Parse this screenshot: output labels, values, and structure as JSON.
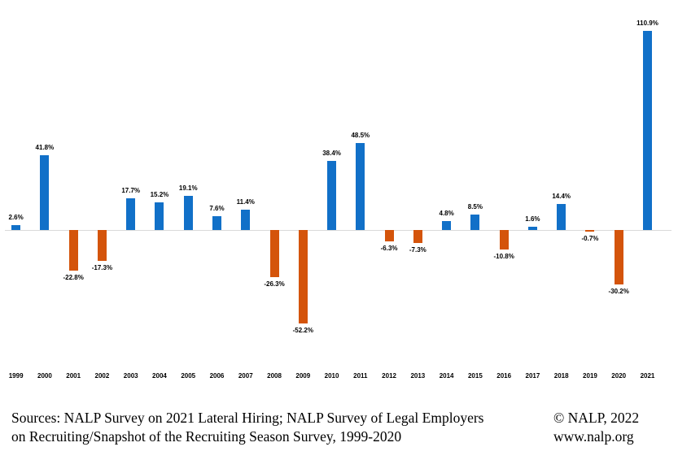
{
  "chart_data": {
    "type": "bar",
    "title": "",
    "xlabel": "",
    "ylabel": "",
    "categories": [
      "1999",
      "2000",
      "2001",
      "2002",
      "2003",
      "2004",
      "2005",
      "2006",
      "2007",
      "2008",
      "2009",
      "2010",
      "2011",
      "2012",
      "2013",
      "2014",
      "2015",
      "2016",
      "2017",
      "2018",
      "2019",
      "2020",
      "2021"
    ],
    "values": [
      2.6,
      41.8,
      -22.8,
      -17.3,
      17.7,
      15.2,
      19.1,
      7.6,
      11.4,
      -26.3,
      -52.2,
      38.4,
      48.5,
      -6.3,
      -7.3,
      4.8,
      8.5,
      -10.8,
      1.6,
      14.4,
      -0.7,
      -30.2,
      110.9
    ],
    "labels": [
      "2.6%",
      "41.8%",
      "-22.8%",
      "-17.3%",
      "17.7%",
      "15.2%",
      "19.1%",
      "7.6%",
      "11.4%",
      "-26.3%",
      "-52.2%",
      "38.4%",
      "48.5%",
      "-6.3%",
      "-7.3%",
      "4.8%",
      "8.5%",
      "-10.8%",
      "1.6%",
      "14.4%",
      "-0.7%",
      "-30.2%",
      "110.9%"
    ],
    "positive_color": "#1170C8",
    "negative_color": "#D4540B",
    "axis_line_color": "#D9D9D9",
    "ylim": [
      -60,
      120
    ],
    "grid": false,
    "legend": "none",
    "data_labels": true
  },
  "footer": {
    "sources_line1": "Sources: NALP Survey on 2021 Lateral Hiring; NALP Survey of Legal Employers",
    "sources_line2": "on Recruiting/Snapshot of the Recruiting Season Survey, 1999-2020",
    "copyright": "© NALP, 2022",
    "website": "www.nalp.org"
  }
}
